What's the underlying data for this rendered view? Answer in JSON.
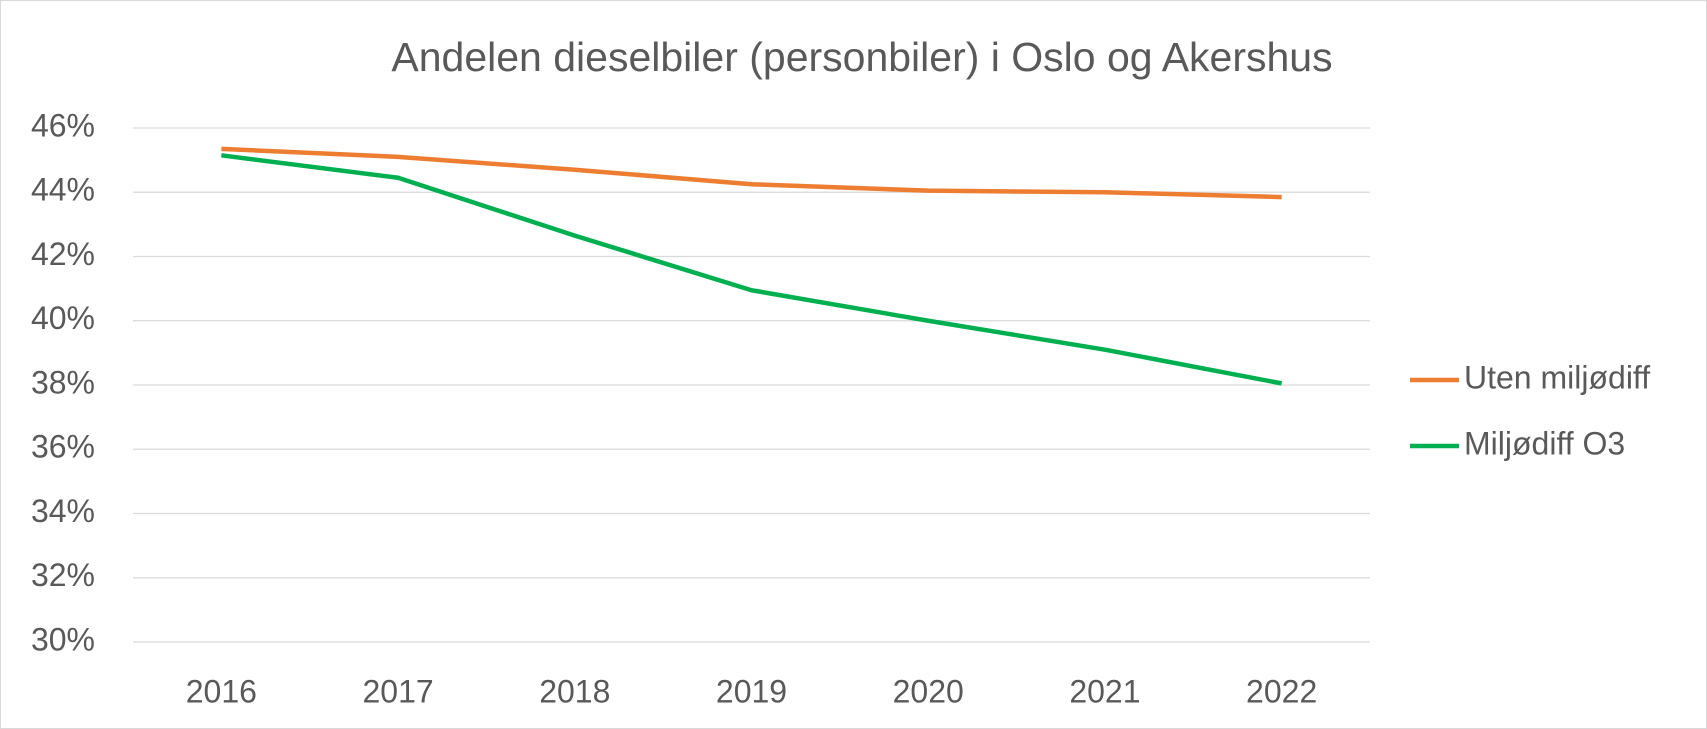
{
  "chart_data": {
    "type": "line",
    "title": "Andelen dieselbiler (personbiler) i Oslo og Akershus",
    "categories": [
      "2016",
      "2017",
      "2018",
      "2019",
      "2020",
      "2021",
      "2022"
    ],
    "series": [
      {
        "name": "Uten miljødiff",
        "color": "#ed7d31",
        "values": [
          45.35,
          45.1,
          44.7,
          44.25,
          44.05,
          44.0,
          43.85
        ]
      },
      {
        "name": "Miljødiff O3",
        "color": "#00b050",
        "values": [
          45.15,
          44.45,
          42.65,
          40.95,
          40.0,
          39.1,
          38.05
        ]
      }
    ],
    "ylim": [
      30,
      46
    ],
    "yticks": [
      {
        "value": 30,
        "label": "30%"
      },
      {
        "value": 32,
        "label": "32%"
      },
      {
        "value": 34,
        "label": "34%"
      },
      {
        "value": 36,
        "label": "36%"
      },
      {
        "value": 38,
        "label": "38%"
      },
      {
        "value": 40,
        "label": "40%"
      },
      {
        "value": 42,
        "label": "42%"
      },
      {
        "value": 44,
        "label": "44%"
      },
      {
        "value": 46,
        "label": "46%"
      }
    ],
    "grid": true,
    "legend": "right"
  }
}
